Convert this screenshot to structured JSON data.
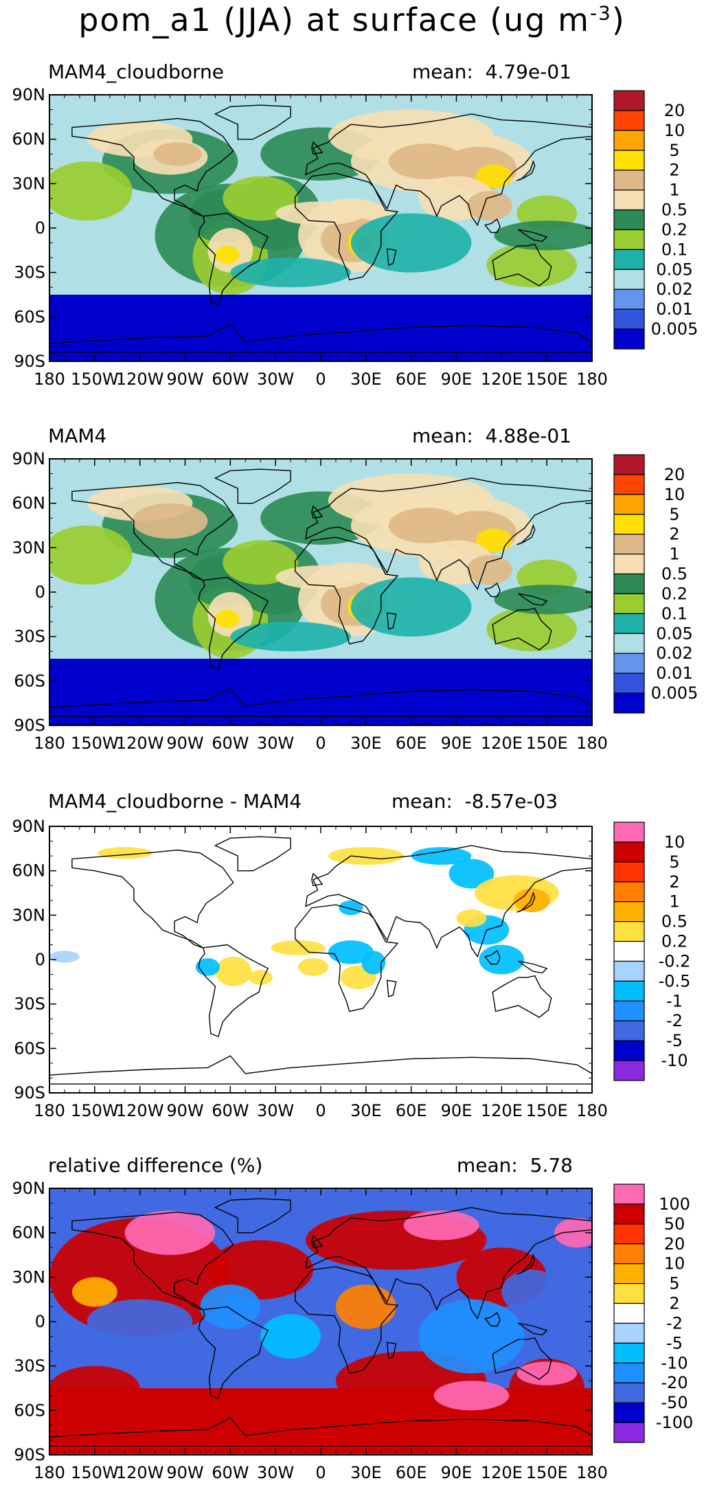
{
  "figure": {
    "title": "pom_a1 (JJA) at surface (ug m",
    "title_exp": "-3",
    "title_close": ")"
  },
  "chart_data": [
    {
      "type": "heatmap",
      "title": "MAM4_cloudborne",
      "mean_label": "mean:",
      "mean_value": "4.79e-01",
      "x_ticks": [
        "180",
        "150W",
        "120W",
        "90W",
        "60W",
        "30W",
        "0",
        "30E",
        "60E",
        "90E",
        "120E",
        "150E",
        "180"
      ],
      "y_ticks": [
        "90N",
        "60N",
        "30N",
        "0",
        "30S",
        "60S",
        "90S"
      ],
      "xlim": [
        -180,
        180
      ],
      "ylim": [
        -90,
        90
      ],
      "levels": [
        "20",
        "10",
        "5",
        "2",
        "1",
        "0.5",
        "0.2",
        "0.1",
        "0.05",
        "0.02",
        "0.01",
        "0.005"
      ],
      "colors": [
        "#b2182b",
        "#ff4500",
        "#ffa500",
        "#ffe000",
        "#deb887",
        "#f5deb3",
        "#2e8b57",
        "#9acd32",
        "#20b2aa",
        "#b0e0e6",
        "#6495ed",
        "#3355dd",
        "#0000cd"
      ],
      "background": "#b0e0e6",
      "south_band": "#0000cd"
    },
    {
      "type": "heatmap",
      "title": "MAM4",
      "mean_label": "mean:",
      "mean_value": "4.88e-01",
      "x_ticks": [
        "180",
        "150W",
        "120W",
        "90W",
        "60W",
        "30W",
        "0",
        "30E",
        "60E",
        "90E",
        "120E",
        "150E",
        "180"
      ],
      "y_ticks": [
        "90N",
        "60N",
        "30N",
        "0",
        "30S",
        "60S",
        "90S"
      ],
      "xlim": [
        -180,
        180
      ],
      "ylim": [
        -90,
        90
      ],
      "levels": [
        "20",
        "10",
        "5",
        "2",
        "1",
        "0.5",
        "0.2",
        "0.1",
        "0.05",
        "0.02",
        "0.01",
        "0.005"
      ],
      "colors": [
        "#b2182b",
        "#ff4500",
        "#ffa500",
        "#ffe000",
        "#deb887",
        "#f5deb3",
        "#2e8b57",
        "#9acd32",
        "#20b2aa",
        "#b0e0e6",
        "#6495ed",
        "#3355dd",
        "#0000cd"
      ],
      "background": "#b0e0e6",
      "south_band": "#0000cd"
    },
    {
      "type": "heatmap",
      "title": "MAM4_cloudborne - MAM4",
      "mean_label": "mean:",
      "mean_value": "-8.57e-03",
      "x_ticks": [
        "180",
        "150W",
        "120W",
        "90W",
        "60W",
        "30W",
        "0",
        "30E",
        "60E",
        "90E",
        "120E",
        "150E",
        "180"
      ],
      "y_ticks": [
        "90N",
        "60N",
        "30N",
        "0",
        "30S",
        "60S",
        "90S"
      ],
      "xlim": [
        -180,
        180
      ],
      "ylim": [
        -90,
        90
      ],
      "levels": [
        "10",
        "5",
        "2",
        "1",
        "0.5",
        "0.2",
        "-0.2",
        "-0.5",
        "-1",
        "-2",
        "-5",
        "-10"
      ],
      "colors": [
        "#ff69b4",
        "#cc0000",
        "#ff3300",
        "#ff8000",
        "#ffb000",
        "#ffe040",
        "#ffffff",
        "#a6d4ff",
        "#00bfff",
        "#1e90ff",
        "#4169e1",
        "#0000cd",
        "#8a2be2"
      ],
      "background": "#ffffff",
      "south_band": "#ffffff"
    },
    {
      "type": "heatmap",
      "title": "relative difference (%)",
      "mean_label": "mean:",
      "mean_value": "5.78",
      "x_ticks": [
        "180",
        "150W",
        "120W",
        "90W",
        "60W",
        "30W",
        "0",
        "30E",
        "60E",
        "90E",
        "120E",
        "150E",
        "180"
      ],
      "y_ticks": [
        "90N",
        "60N",
        "30N",
        "0",
        "30S",
        "60S",
        "90S"
      ],
      "xlim": [
        -180,
        180
      ],
      "ylim": [
        -90,
        90
      ],
      "levels": [
        "100",
        "50",
        "20",
        "10",
        "5",
        "2",
        "-2",
        "-5",
        "-10",
        "-20",
        "-50",
        "-100"
      ],
      "colors": [
        "#ff69b4",
        "#cc0000",
        "#ff3300",
        "#ff8000",
        "#ffb000",
        "#ffe040",
        "#ffffff",
        "#a6d4ff",
        "#00bfff",
        "#1e90ff",
        "#4169e1",
        "#0000cd",
        "#8a2be2"
      ],
      "background": "#4169e1",
      "south_band": "#cc0000"
    }
  ]
}
